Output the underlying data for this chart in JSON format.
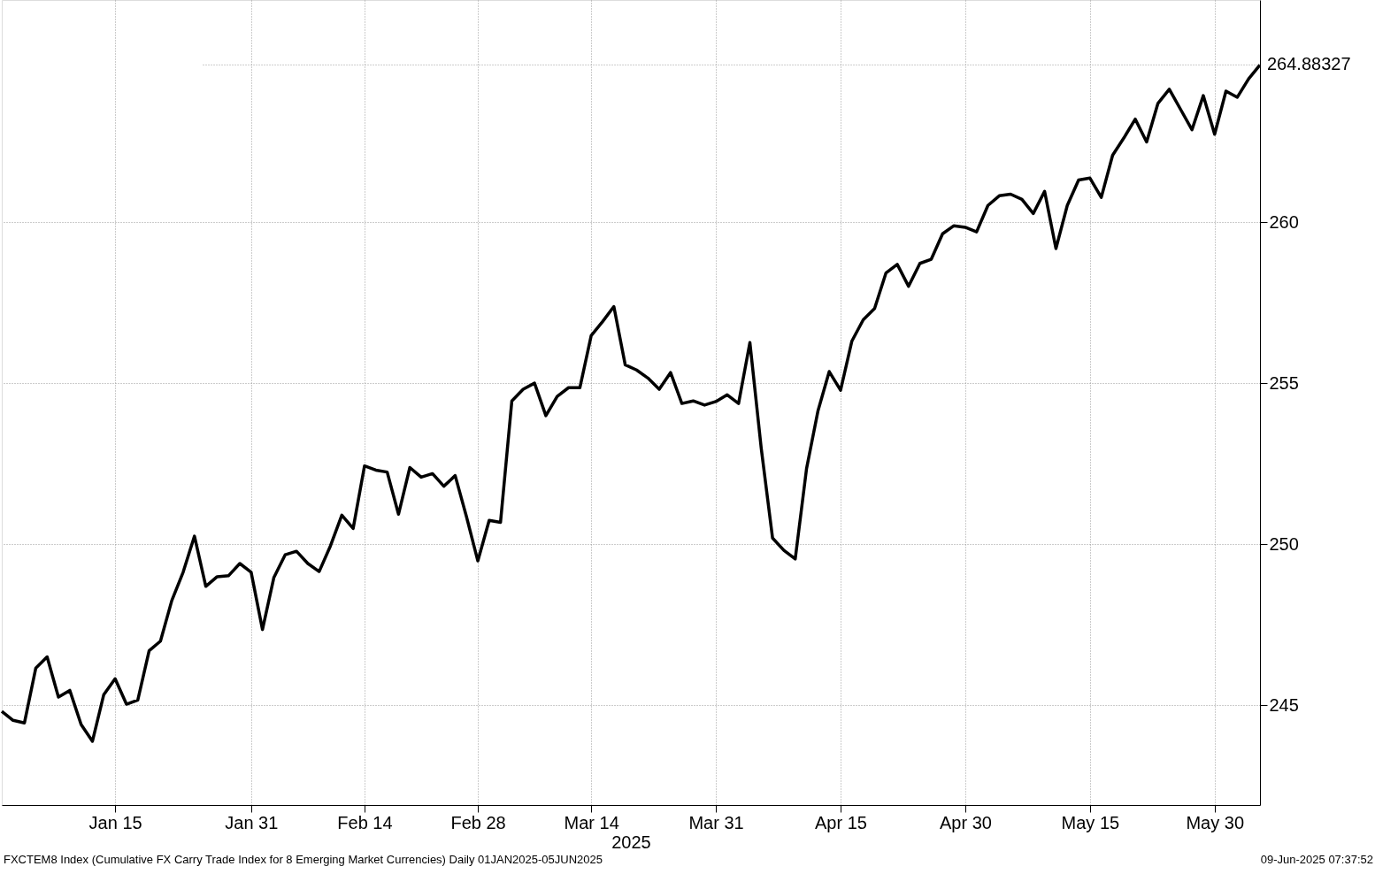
{
  "chart_data": {
    "type": "line",
    "xlabel": "2025",
    "categories": [
      null,
      null,
      null,
      null,
      null,
      null,
      null,
      null,
      null,
      null,
      "Jan 15",
      null,
      null,
      null,
      null,
      null,
      null,
      null,
      null,
      null,
      null,
      null,
      "Jan 31",
      null,
      null,
      null,
      null,
      null,
      null,
      null,
      null,
      null,
      "Feb 14",
      null,
      null,
      null,
      null,
      null,
      null,
      null,
      null,
      null,
      "Feb 28",
      null,
      null,
      null,
      null,
      null,
      null,
      null,
      null,
      null,
      "Mar 14",
      null,
      null,
      null,
      null,
      null,
      null,
      null,
      null,
      null,
      null,
      "Mar 31",
      null,
      null,
      null,
      null,
      null,
      null,
      null,
      null,
      null,
      null,
      "Apr 15",
      null,
      null,
      null,
      null,
      null,
      null,
      null,
      null,
      null,
      null,
      "Apr 30",
      null,
      null,
      null,
      null,
      null,
      null,
      null,
      null,
      null,
      null,
      "May 15",
      null,
      null,
      null,
      null,
      null,
      null,
      null,
      null,
      null,
      null,
      "May 30",
      null,
      null,
      null,
      null
    ],
    "series": [
      {
        "color": "#000000",
        "values": [
          244.81,
          244.53,
          244.45,
          246.15,
          246.5,
          245.25,
          245.46,
          244.4,
          243.88,
          245.33,
          245.82,
          245.03,
          245.16,
          246.69,
          246.99,
          248.25,
          249.13,
          250.25,
          248.69,
          248.99,
          249.02,
          249.4,
          249.13,
          247.35,
          248.96,
          249.67,
          249.78,
          249.4,
          249.15,
          249.95,
          250.9,
          250.49,
          252.43,
          252.3,
          252.24,
          250.93,
          252.38,
          252.08,
          252.19,
          251.8,
          252.13,
          250.85,
          249.48,
          250.74,
          250.68,
          254.45,
          254.81,
          255.0,
          253.99,
          254.59,
          254.86,
          254.86,
          256.48,
          256.91,
          257.38,
          255.57,
          255.41,
          255.16,
          254.81,
          255.33,
          254.37,
          254.45,
          254.32,
          254.43,
          254.64,
          254.37,
          256.26,
          252.98,
          250.19,
          249.81,
          249.54,
          252.35,
          254.13,
          255.36,
          254.78,
          256.31,
          256.97,
          257.32,
          258.42,
          258.69,
          258.01,
          258.72,
          258.85,
          259.64,
          259.89,
          259.84,
          259.7,
          260.52,
          260.82,
          260.87,
          260.71,
          260.27,
          260.96,
          259.18,
          260.52,
          261.31,
          261.37,
          260.77,
          262.08,
          262.62,
          263.2,
          262.49,
          263.69,
          264.13,
          263.5,
          262.87,
          263.93,
          262.73,
          264.07,
          263.88,
          264.45,
          264.88327
        ]
      }
    ],
    "ylim": [
      241.9,
      266.9
    ],
    "yticks": [
      245,
      250,
      255,
      260
    ],
    "ref_lines": [
      {
        "axis": "y",
        "value": 264.88327,
        "label": "264.88327",
        "line_style": "dotted"
      }
    ],
    "grid": true,
    "line_style": "solid",
    "marker": "none",
    "annotations": [
      "FXCTEM8 Index (Cumulative FX Carry Trade Index for 8 Emerging Market Currencies)  Daily 01JAN2025-05JUN2025",
      "09-Jun-2025 07:37:52"
    ]
  }
}
